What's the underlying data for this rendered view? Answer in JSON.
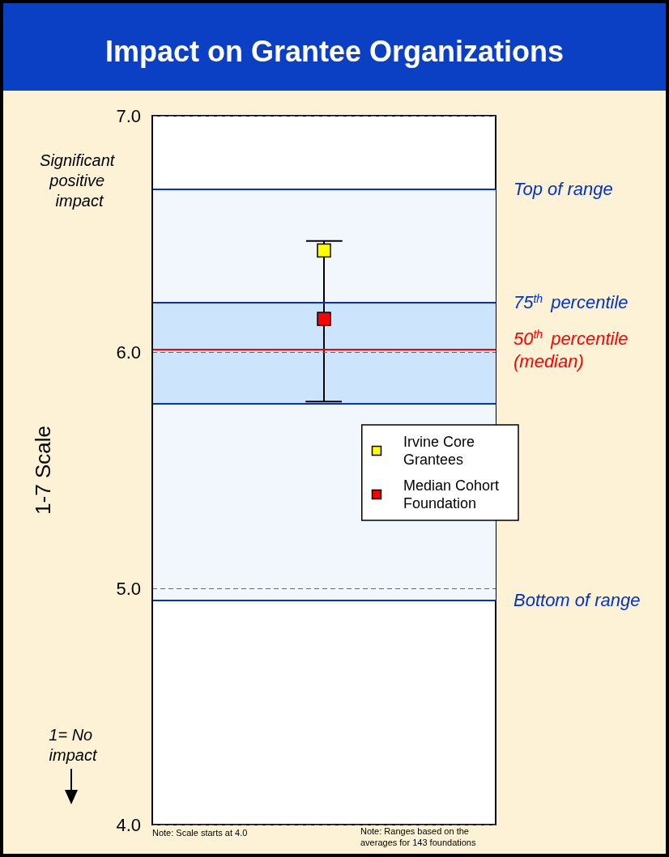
{
  "chart_data": {
    "type": "scatter",
    "title": "Impact on Grantee Organizations",
    "ylabel": "1-7 Scale",
    "categories": [
      null
    ],
    "series": [
      {
        "name": "Irvine Core Grantees",
        "color": "#ffff00",
        "values": [
          6.43
        ],
        "errors": [
          [
            5.79,
            6.47
          ]
        ],
        "marker": "square"
      },
      {
        "name": "Median Cohort Foundation",
        "color": "#ff0000",
        "values": [
          6.14
        ],
        "marker": "square"
      }
    ],
    "ylim": [
      4,
      7
    ],
    "yticks": [
      {
        "value": 4,
        "label": "4.0"
      },
      {
        "value": 5,
        "label": "5.0"
      },
      {
        "value": 6,
        "label": "6.0"
      },
      {
        "value": 7,
        "label": "7.0"
      }
    ],
    "grid": "y",
    "legend": "right",
    "tick_labels": "y",
    "bands": [
      {
        "axis": "y",
        "from": 4.95,
        "to": 6.69,
        "color": "#f2f7fe"
      },
      {
        "axis": "y",
        "from": 5.78,
        "to": 6.21,
        "color": "#cce4fc"
      }
    ],
    "ref_lines": [
      {
        "axis": "y",
        "value": 6.69,
        "label": "Top of range",
        "color": "#0033cc"
      },
      {
        "axis": "y",
        "value": 6.21,
        "label": "75$^{th}$ percentile",
        "color": "#0033cc"
      },
      {
        "axis": "y",
        "value": 6.01,
        "label": "50$^{th}$ percentile (median)",
        "color": "#ff0000"
      },
      {
        "axis": "y",
        "value": 5.78,
        "color": "#0033cc"
      },
      {
        "axis": "y",
        "value": 4.95,
        "label": "Bottom of range",
        "color": "#0033cc"
      }
    ],
    "annotations": [
      "Significant positive impact",
      "1= No impact",
      "Note: Scale starts at 4.0",
      "Note: Ranges based on the averages for 143 foundations"
    ]
  }
}
